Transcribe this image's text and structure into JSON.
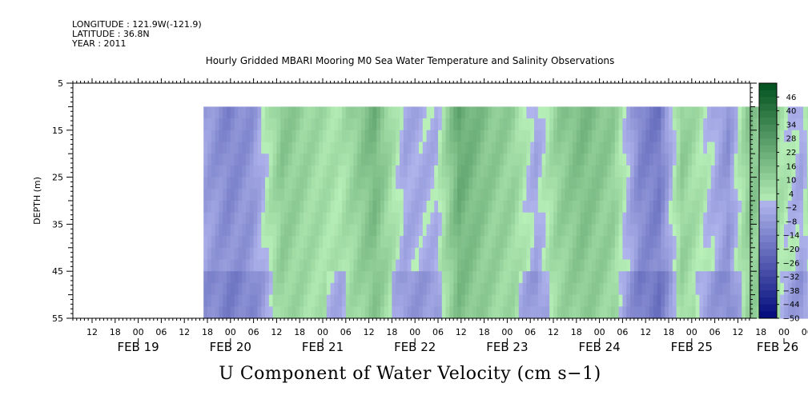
{
  "header": {
    "longitude": "LONGITUDE : 121.9W(-121.9)",
    "latitude": "LATITUDE : 36.8N",
    "year": "YEAR : 2011"
  },
  "chart_data": {
    "type": "heatmap",
    "title": "Hourly Gridded MBARI Mooring M0 Sea Water Temperature and Salinity Observations",
    "xlabel": "U Component of Water Velocity (cm s−1)",
    "ylabel": "DEPTH (m)",
    "ylim": [
      55,
      5
    ],
    "yticks": [
      "5",
      "15",
      "25",
      "35",
      "45",
      "55"
    ],
    "data_depth_range": [
      10,
      55
    ],
    "x_hour_ticks": [
      "12",
      "18",
      "00",
      "06",
      "12",
      "18",
      "00",
      "06",
      "12",
      "18",
      "00",
      "06",
      "12",
      "18",
      "00",
      "06",
      "12",
      "18",
      "00",
      "06",
      "12",
      "18",
      "00",
      "06",
      "12",
      "18",
      "00",
      "06",
      "12",
      "18",
      "00",
      "06",
      "12",
      "18",
      "00",
      "06",
      "12",
      "18",
      "00",
      "06"
    ],
    "x_day_labels": [
      "FEB 19",
      "FEB 20",
      "FEB 21",
      "FEB 22",
      "FEB 23",
      "FEB 24",
      "FEB 25",
      "FEB 26"
    ],
    "data_time_range": [
      "FEB 19 17:00",
      "FEB 26 10:00"
    ],
    "colorbar": {
      "labels": [
        "46",
        "40",
        "34",
        "28",
        "22",
        "16",
        "10",
        "4",
        "−2",
        "−8",
        "−14",
        "−20",
        "−26",
        "−32",
        "−38",
        "−44",
        "−50"
      ],
      "min": -50,
      "max": 52,
      "step": 3,
      "negative_color_start": "#b0b4ec",
      "negative_color_end": "#000a7a",
      "positive_color_start": "#b8f0b8",
      "positive_color_end": "#00501e"
    },
    "profile_mean_u": [
      {
        "hour": 0,
        "u": -7
      },
      {
        "hour": 6,
        "u": -14
      },
      {
        "hour": 12,
        "u": -10
      },
      {
        "hour": 20,
        "u": 14
      },
      {
        "hour": 28,
        "u": 8
      },
      {
        "hour": 35,
        "u": 4
      },
      {
        "hour": 44,
        "u": 20
      },
      {
        "hour": 52,
        "u": -4
      },
      {
        "hour": 60,
        "u": -2
      },
      {
        "hour": 66,
        "u": 24
      },
      {
        "hour": 74,
        "u": 14
      },
      {
        "hour": 80,
        "u": 10
      },
      {
        "hour": 86,
        "u": -4
      },
      {
        "hour": 92,
        "u": 12
      },
      {
        "hour": 98,
        "u": 18
      },
      {
        "hour": 106,
        "u": 12
      },
      {
        "hour": 113,
        "u": -14
      },
      {
        "hour": 118,
        "u": -18
      },
      {
        "hour": 124,
        "u": 12
      },
      {
        "hour": 130,
        "u": 2
      },
      {
        "hour": 136,
        "u": -10
      },
      {
        "hour": 142,
        "u": 16
      },
      {
        "hour": 148,
        "u": 8
      },
      {
        "hour": 155,
        "u": -4
      },
      {
        "hour": 160,
        "u": 14
      },
      {
        "hour": 166,
        "u": 24
      },
      {
        "hour": 172,
        "u": 16
      },
      {
        "hour": 178,
        "u": 8
      },
      {
        "hour": 184,
        "u": 2
      },
      {
        "hour": 190,
        "u": 18
      },
      {
        "hour": 197,
        "u": 22
      },
      {
        "hour": 204,
        "u": 14
      },
      {
        "hour": 210,
        "u": 18
      },
      {
        "hour": 217,
        "u": 20
      }
    ]
  }
}
